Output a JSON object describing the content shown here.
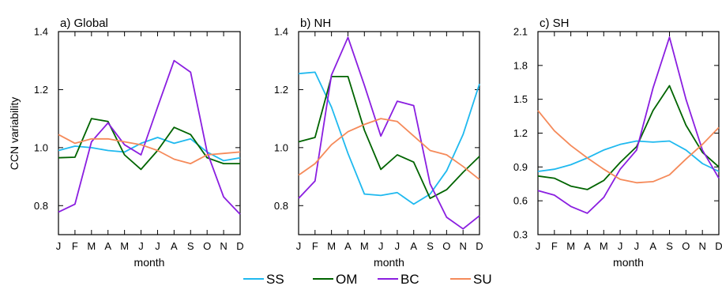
{
  "colors": {
    "SS": "#1fb9ef",
    "OM": "#006400",
    "BC": "#8a1ee0",
    "SU": "#f58a5a"
  },
  "ylabel": "CCN variability",
  "legend": {
    "placement": "bottom",
    "entries": [
      "SS",
      "OM",
      "BC",
      "SU"
    ]
  },
  "chart_data": [
    {
      "type": "line",
      "title": "a) Global",
      "xlabel": "month",
      "ylabel": "CCN variability",
      "categories": [
        "J",
        "F",
        "M",
        "A",
        "M",
        "J",
        "J",
        "A",
        "S",
        "O",
        "N",
        "D"
      ],
      "ylim": [
        0.7,
        1.4
      ],
      "yticks": [
        0.8,
        1.0,
        1.2,
        1.4
      ],
      "ytick_labels": [
        "0.8",
        "1.0",
        "1.2",
        "1.4"
      ],
      "grid": false,
      "series": [
        {
          "name": "SS",
          "values": [
            0.99,
            1.005,
            1.0,
            0.99,
            0.985,
            1.015,
            1.035,
            1.015,
            1.03,
            0.985,
            0.955,
            0.965
          ]
        },
        {
          "name": "OM",
          "values": [
            0.965,
            0.967,
            1.1,
            1.09,
            0.975,
            0.925,
            0.99,
            1.07,
            1.045,
            0.965,
            0.945,
            0.945
          ]
        },
        {
          "name": "BC",
          "values": [
            0.778,
            0.805,
            1.02,
            1.085,
            1.01,
            0.975,
            1.14,
            1.3,
            1.26,
            0.985,
            0.83,
            0.77
          ]
        },
        {
          "name": "SU",
          "values": [
            1.045,
            1.015,
            1.03,
            1.03,
            1.02,
            1.01,
            0.99,
            0.96,
            0.945,
            0.975,
            0.98,
            0.985
          ]
        }
      ]
    },
    {
      "type": "line",
      "title": "b) NH",
      "xlabel": "month",
      "ylabel": "",
      "categories": [
        "J",
        "F",
        "M",
        "A",
        "M",
        "J",
        "J",
        "A",
        "S",
        "O",
        "N",
        "D"
      ],
      "ylim": [
        0.7,
        1.4
      ],
      "yticks": [
        0.8,
        1.0,
        1.2,
        1.4
      ],
      "ytick_labels": [
        "0.8",
        "1.0",
        "1.2",
        "1.4"
      ],
      "grid": false,
      "series": [
        {
          "name": "SS",
          "values": [
            1.255,
            1.26,
            1.14,
            0.98,
            0.84,
            0.835,
            0.845,
            0.805,
            0.84,
            0.92,
            1.045,
            1.22
          ]
        },
        {
          "name": "OM",
          "values": [
            1.02,
            1.035,
            1.245,
            1.245,
            1.06,
            0.925,
            0.975,
            0.95,
            0.825,
            0.855,
            0.915,
            0.97
          ]
        },
        {
          "name": "BC",
          "values": [
            0.825,
            0.885,
            1.25,
            1.38,
            1.215,
            1.04,
            1.16,
            1.145,
            0.875,
            0.76,
            0.72,
            0.765
          ]
        },
        {
          "name": "SU",
          "values": [
            0.905,
            0.945,
            1.01,
            1.055,
            1.08,
            1.1,
            1.09,
            1.04,
            0.99,
            0.975,
            0.935,
            0.89
          ]
        }
      ]
    },
    {
      "type": "line",
      "title": "c) SH",
      "xlabel": "month",
      "ylabel": "",
      "categories": [
        "J",
        "F",
        "M",
        "A",
        "M",
        "J",
        "J",
        "A",
        "S",
        "O",
        "N",
        "D"
      ],
      "ylim": [
        0.3,
        2.1
      ],
      "yticks": [
        0.3,
        0.6,
        0.9,
        1.2,
        1.5,
        1.8,
        2.1
      ],
      "ytick_labels": [
        "0.3",
        "0.6",
        "0.9",
        "1.2",
        "1.5",
        "1.8",
        "2.1"
      ],
      "grid": false,
      "series": [
        {
          "name": "SS",
          "values": [
            0.86,
            0.88,
            0.92,
            0.98,
            1.05,
            1.1,
            1.13,
            1.12,
            1.13,
            1.05,
            0.93,
            0.86
          ]
        },
        {
          "name": "OM",
          "values": [
            0.82,
            0.8,
            0.73,
            0.7,
            0.78,
            0.94,
            1.08,
            1.4,
            1.62,
            1.27,
            1.03,
            0.9
          ]
        },
        {
          "name": "BC",
          "values": [
            0.69,
            0.65,
            0.55,
            0.49,
            0.63,
            0.88,
            1.05,
            1.6,
            2.05,
            1.5,
            1.05,
            0.8
          ]
        },
        {
          "name": "SU",
          "values": [
            1.4,
            1.22,
            1.09,
            0.98,
            0.88,
            0.79,
            0.76,
            0.77,
            0.83,
            0.97,
            1.1,
            1.25
          ]
        }
      ]
    }
  ]
}
